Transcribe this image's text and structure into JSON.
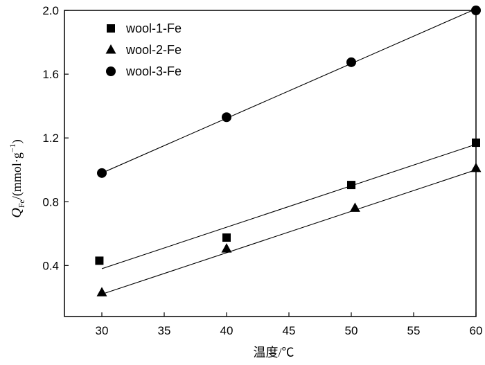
{
  "chart_data": {
    "type": "scatter",
    "xlabel": "温度/℃",
    "ylabel": {
      "symbol": "Q",
      "subscript": "Fe",
      "unit": "/(mmol·g",
      "superscript": "−1",
      "close": ")"
    },
    "xlim": [
      27,
      60
    ],
    "ylim": [
      0.08,
      2.0
    ],
    "xticks": [
      30,
      35,
      40,
      45,
      50,
      55,
      60
    ],
    "yticks": [
      0.4,
      0.8,
      1.2,
      1.6,
      2.0
    ],
    "ytick_labels": [
      "0.4",
      "0.8",
      "1.2",
      "1.6",
      "2.0"
    ],
    "legend_position": "top-left",
    "series": [
      {
        "name": "wool-1-Fe",
        "marker": "square",
        "x": [
          29.8,
          40,
          50,
          60
        ],
        "y": [
          0.43,
          0.575,
          0.905,
          1.17
        ],
        "fit": {
          "x": [
            30,
            60
          ],
          "y": [
            0.38,
            1.16
          ]
        }
      },
      {
        "name": "wool-2-Fe",
        "marker": "triangle",
        "x": [
          30,
          40,
          50.3,
          60
        ],
        "y": [
          0.23,
          0.505,
          0.76,
          1.01
        ],
        "fit": {
          "x": [
            30,
            60
          ],
          "y": [
            0.22,
            1.0
          ]
        }
      },
      {
        "name": "wool-3-Fe",
        "marker": "circle",
        "x": [
          30,
          40,
          50,
          60
        ],
        "y": [
          0.98,
          1.33,
          1.675,
          2.0
        ],
        "fit": {
          "x": [
            30,
            60
          ],
          "y": [
            0.98,
            2.01
          ]
        }
      }
    ]
  }
}
